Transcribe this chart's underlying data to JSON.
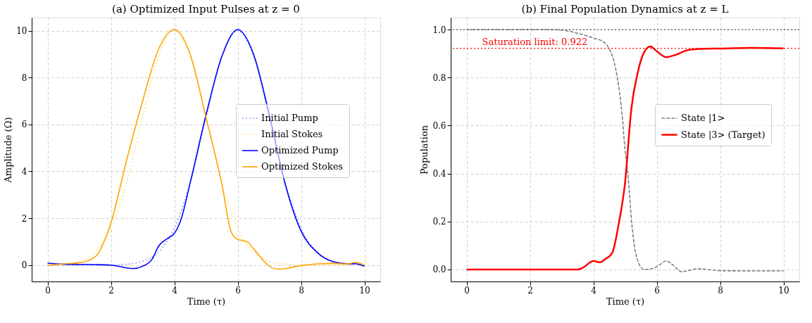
{
  "chart_data": [
    {
      "type": "line",
      "title": "(a) Optimized Input Pulses at z = 0",
      "xlabel": "Time (τ)",
      "ylabel": "Amplitude (Ω)",
      "xlim": [
        -0.5,
        10.5
      ],
      "ylim": [
        -0.7,
        10.56
      ],
      "xticks": [
        0,
        2,
        4,
        6,
        8,
        10
      ],
      "yticks": [
        0,
        2,
        4,
        6,
        8,
        10
      ],
      "grid": true,
      "legend": "right",
      "series": [
        {
          "name": "Initial Pump",
          "color": "#9999ff",
          "line_style": "dotted",
          "x": [
            0,
            0.5,
            1,
            1.5,
            2,
            2.5,
            3,
            3.5,
            4,
            4.5,
            5,
            5.5,
            6,
            6.5,
            7,
            7.5,
            8,
            8.5,
            9,
            9.5,
            10
          ],
          "values": [
            0,
            0,
            0,
            0,
            0,
            0.04,
            0.16,
            0.56,
            1.57,
            3.53,
            6.3,
            8.91,
            10,
            8.91,
            6.3,
            3.53,
            1.57,
            0.56,
            0.16,
            0.04,
            0
          ]
        },
        {
          "name": "Initial Stokes",
          "color": "#ffdb99",
          "line_style": "dotted",
          "x": [
            0,
            0.5,
            1,
            1.5,
            2,
            2.5,
            3,
            3.5,
            4,
            4.5,
            5,
            5.5,
            6,
            6.5,
            7,
            7.5,
            8,
            8.5,
            9,
            9.5,
            10
          ],
          "values": [
            0,
            0.04,
            0.16,
            0.56,
            1.57,
            3.53,
            6.3,
            8.91,
            10,
            8.91,
            6.3,
            3.53,
            1.57,
            0.56,
            0.16,
            0.04,
            0,
            0,
            0,
            0,
            0
          ]
        },
        {
          "name": "Optimized Pump",
          "color": "#0000ff",
          "line_style": "solid",
          "x": [
            0,
            0.5,
            1,
            1.5,
            2,
            2.5,
            2.7,
            3,
            3.3,
            3.5,
            3.8,
            4,
            4.2,
            4.5,
            5,
            5.5,
            6,
            6.5,
            7,
            7.5,
            8,
            8.5,
            9,
            9.5,
            9.7,
            10
          ],
          "values": [
            0.08,
            0.04,
            0.03,
            0.02,
            0,
            -0.12,
            -0.15,
            -0.05,
            0.25,
            0.8,
            1.15,
            1.35,
            1.9,
            3.5,
            6.4,
            8.9,
            10.05,
            9,
            6.4,
            3.45,
            1.45,
            0.55,
            0.15,
            0.05,
            0.06,
            -0.05
          ]
        },
        {
          "name": "Optimized Stokes",
          "color": "#ffa500",
          "line_style": "solid",
          "x": [
            0,
            0.5,
            1,
            1.5,
            2,
            2.5,
            3,
            3.5,
            4,
            4.5,
            5,
            5.5,
            5.8,
            6,
            6.3,
            6.5,
            7,
            7.3,
            7.5,
            8,
            8.5,
            9,
            9.5,
            9.7,
            10
          ],
          "values": [
            -0.02,
            0.05,
            0.1,
            0.35,
            1.8,
            4.5,
            7,
            9.2,
            10.05,
            9,
            6.3,
            3.45,
            1.4,
            1.1,
            1,
            0.7,
            -0.05,
            -0.17,
            -0.15,
            -0.02,
            0.05,
            0.07,
            0.05,
            0.12,
            0
          ]
        }
      ]
    },
    {
      "type": "line",
      "title": "(b) Final Population Dynamics at z = L",
      "xlabel": "Time (τ)",
      "ylabel": "Population",
      "xlim": [
        -0.5,
        10.5
      ],
      "ylim": [
        -0.05,
        1.05
      ],
      "xticks": [
        0,
        2,
        4,
        6,
        8,
        10
      ],
      "yticks": [
        {
          "value": 0,
          "label": "0.0"
        },
        0.2,
        0.4,
        0.6,
        0.8,
        {
          "value": 1,
          "label": "1.0"
        }
      ],
      "grid": true,
      "legend": "right",
      "ref_lines": [
        {
          "axis": "y",
          "value": 1.0,
          "color": "#555555",
          "line_style": "dotted"
        },
        {
          "axis": "y",
          "value": 0.922,
          "label": "Saturation limit: 0.922",
          "color": "#ff0000",
          "line_style": "dotted"
        }
      ],
      "series": [
        {
          "name": "State |1>",
          "color": "#808080",
          "line_style": "dashed",
          "x": [
            0,
            1,
            2,
            2.5,
            3,
            3.5,
            4,
            4.3,
            4.5,
            4.7,
            4.9,
            5,
            5.1,
            5.2,
            5.4,
            5.6,
            5.9,
            6.1,
            6.3,
            6.5,
            6.8,
            7,
            7.3,
            7.6,
            8,
            9,
            10
          ],
          "values": [
            1,
            1,
            1,
            1,
            0.998,
            0.985,
            0.965,
            0.95,
            0.92,
            0.84,
            0.655,
            0.5,
            0.385,
            0.21,
            0.037,
            0,
            0.005,
            0.02,
            0.036,
            0.02,
            -0.01,
            -0.005,
            0.003,
            0,
            -0.005,
            -0.006,
            -0.006
          ]
        },
        {
          "name": "State |3> (Target)",
          "color": "#ff0000",
          "line_style": "solid",
          "x": [
            0,
            1,
            2,
            3,
            3.5,
            3.7,
            3.9,
            4,
            4.2,
            4.4,
            4.6,
            4.8,
            5,
            5.2,
            5.4,
            5.6,
            5.8,
            6,
            6.3,
            6.6,
            7,
            7.5,
            8,
            9,
            10
          ],
          "values": [
            0,
            0,
            0,
            0,
            0,
            0.01,
            0.03,
            0.036,
            0.03,
            0.045,
            0.07,
            0.19,
            0.36,
            0.67,
            0.82,
            0.905,
            0.93,
            0.91,
            0.885,
            0.895,
            0.915,
            0.92,
            0.921,
            0.924,
            0.922
          ]
        }
      ]
    }
  ]
}
